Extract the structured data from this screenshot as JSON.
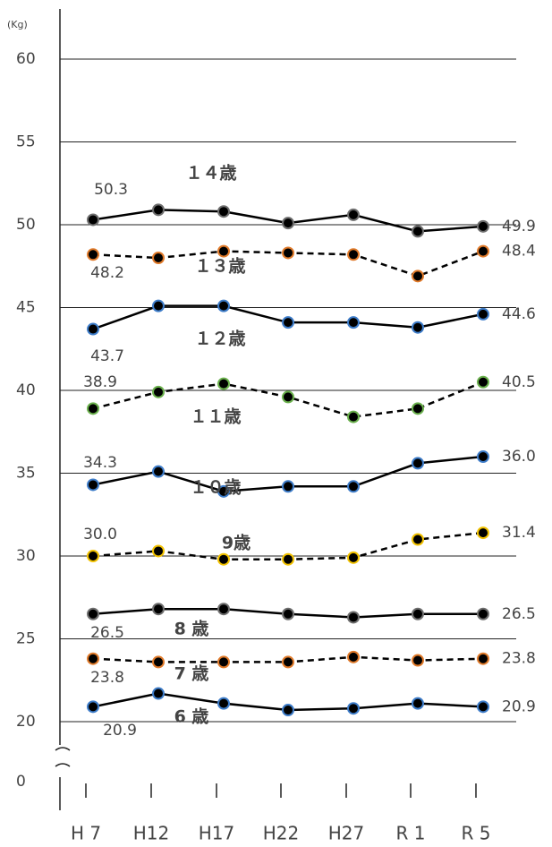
{
  "chart_data": {
    "type": "line",
    "y_label": "(Kg)",
    "categories": [
      "H 7",
      "H12",
      "H17",
      "H22",
      "H27",
      "R 1",
      "R 5"
    ],
    "ylim": [
      20,
      60
    ],
    "yticks": [
      0,
      20,
      25,
      30,
      35,
      40,
      45,
      50,
      55,
      60
    ],
    "axis_break": true,
    "grid": true,
    "series": [
      {
        "name": "１４歳",
        "color": "#6e6e6e",
        "dashed": false,
        "values": [
          50.3,
          50.9,
          50.8,
          50.1,
          50.6,
          49.6,
          49.9
        ],
        "value_labels": [
          "50.3",
          null,
          null,
          null,
          null,
          null,
          "49.9"
        ]
      },
      {
        "name": "１３歳",
        "color": "#e07a2a",
        "dashed": true,
        "values": [
          48.2,
          48.0,
          48.4,
          48.3,
          48.2,
          46.9,
          48.4
        ],
        "value_labels": [
          "48.2",
          null,
          null,
          null,
          null,
          null,
          "48.4"
        ]
      },
      {
        "name": "１２歳",
        "color": "#3d7cc9",
        "dashed": false,
        "values": [
          43.7,
          45.1,
          45.1,
          44.1,
          44.1,
          43.8,
          44.6
        ],
        "value_labels": [
          "43.7",
          null,
          null,
          null,
          null,
          null,
          "44.6"
        ]
      },
      {
        "name": "１１歳",
        "color": "#6ab04c",
        "dashed": true,
        "values": [
          38.9,
          39.9,
          40.4,
          39.6,
          38.4,
          38.9,
          40.5
        ],
        "value_labels": [
          "38.9",
          null,
          null,
          null,
          null,
          null,
          "40.5"
        ]
      },
      {
        "name": "１０歳",
        "color": "#3d7cc9",
        "dashed": false,
        "values": [
          34.3,
          35.1,
          33.9,
          34.2,
          34.2,
          35.6,
          36.0
        ],
        "value_labels": [
          "34.3",
          null,
          null,
          null,
          null,
          null,
          "36.0"
        ]
      },
      {
        "name": "9歳",
        "color": "#f2c200",
        "dashed": true,
        "values": [
          30.0,
          30.3,
          29.8,
          29.8,
          29.9,
          31.0,
          31.4
        ],
        "value_labels": [
          "30.0",
          null,
          null,
          null,
          null,
          null,
          "31.4"
        ]
      },
      {
        "name": "8 歳",
        "color": "#6e6e6e",
        "dashed": false,
        "values": [
          26.5,
          26.8,
          26.8,
          26.5,
          26.3,
          26.5,
          26.5
        ],
        "value_labels": [
          "26.5",
          null,
          null,
          null,
          null,
          null,
          "26.5"
        ]
      },
      {
        "name": "7 歳",
        "color": "#e07a2a",
        "dashed": true,
        "values": [
          23.8,
          23.6,
          23.6,
          23.6,
          23.9,
          23.7,
          23.8
        ],
        "value_labels": [
          "23.8",
          null,
          null,
          null,
          null,
          null,
          "23.8"
        ]
      },
      {
        "name": "6 歳",
        "color": "#3d7cc9",
        "dashed": false,
        "values": [
          20.9,
          21.7,
          21.1,
          20.7,
          20.8,
          21.1,
          20.9
        ],
        "value_labels": [
          "20.9",
          null,
          null,
          null,
          null,
          null,
          "20.9"
        ]
      }
    ]
  }
}
